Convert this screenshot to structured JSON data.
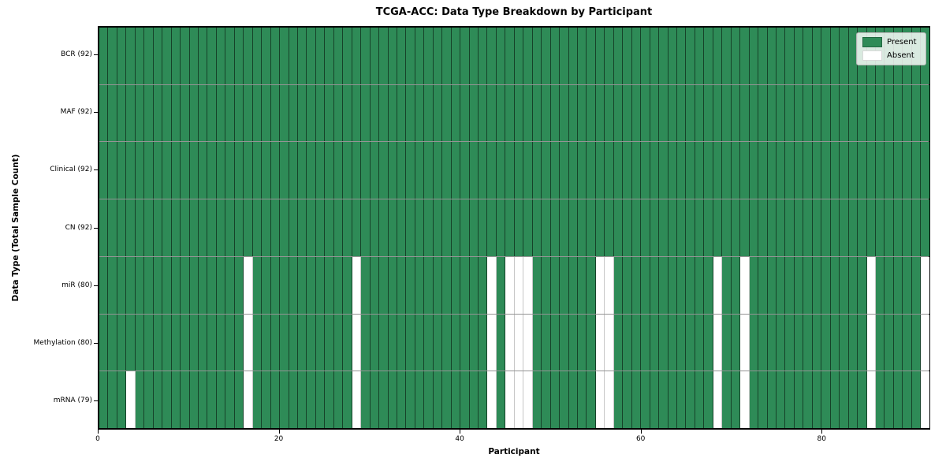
{
  "title": "TCGA-ACC: Data Type Breakdown by Participant",
  "xlabel": "Participant",
  "ylabel": "Data Type (Total Sample Count)",
  "legend": {
    "present_label": "Present",
    "absent_label": "Absent"
  },
  "colors": {
    "present": "#2e8b57",
    "absent": "#ffffff",
    "spine": "#000000"
  },
  "chart_data": {
    "type": "heatmap",
    "n_participants": 92,
    "x_ticks": [
      0,
      20,
      40,
      60,
      80
    ],
    "legend_position": "upper right",
    "grid": true,
    "rows": [
      {
        "label": "BCR (92)",
        "data_type": "BCR",
        "present_count": 92,
        "absent_participants": []
      },
      {
        "label": "MAF (92)",
        "data_type": "MAF",
        "present_count": 92,
        "absent_participants": []
      },
      {
        "label": "Clinical (92)",
        "data_type": "Clinical",
        "present_count": 92,
        "absent_participants": []
      },
      {
        "label": "CN (92)",
        "data_type": "CN",
        "present_count": 92,
        "absent_participants": []
      },
      {
        "label": "miR (80)",
        "data_type": "miR",
        "present_count": 80,
        "absent_participants": [
          16,
          28,
          43,
          45,
          46,
          47,
          55,
          56,
          68,
          71,
          85,
          91
        ]
      },
      {
        "label": "Methylation (80)",
        "data_type": "Methylation",
        "present_count": 80,
        "absent_participants": [
          16,
          28,
          43,
          45,
          46,
          47,
          55,
          56,
          68,
          71,
          85,
          91
        ]
      },
      {
        "label": "mRNA (79)",
        "data_type": "mRNA",
        "present_count": 79,
        "absent_participants": [
          3,
          16,
          28,
          43,
          45,
          46,
          47,
          55,
          56,
          68,
          71,
          85,
          91
        ]
      }
    ]
  }
}
